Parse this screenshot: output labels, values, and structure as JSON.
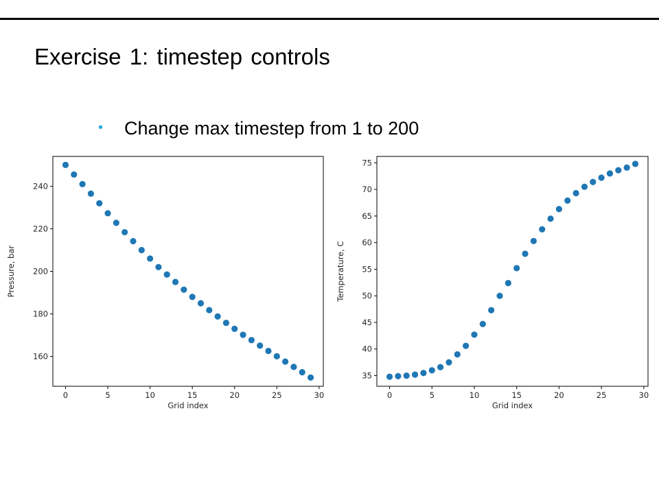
{
  "slide": {
    "title": "Exercise  1: timestep  controls",
    "bullet": "Change max timestep from 1 to 200"
  },
  "colors": {
    "marker": "#1f77b4",
    "bullet": "#2aa8d8"
  },
  "chart_data": [
    {
      "type": "scatter",
      "title": "",
      "xlabel": "Grid index",
      "ylabel": "Pressure, bar",
      "xlim": [
        -1.5,
        30.5
      ],
      "ylim": [
        146,
        254
      ],
      "xticks": [
        0,
        5,
        10,
        15,
        20,
        25,
        30
      ],
      "yticks": [
        160,
        180,
        200,
        220,
        240
      ],
      "series": [
        {
          "x": [
            0,
            1,
            2,
            3,
            4,
            5,
            6,
            7,
            8,
            9,
            10,
            11,
            12,
            13,
            14,
            15,
            16,
            17,
            18,
            19,
            20,
            21,
            22,
            23,
            24,
            25,
            26,
            27,
            28,
            29
          ],
          "y": [
            250,
            245.5,
            241,
            236.5,
            232,
            227.3,
            222.8,
            218.4,
            214.2,
            210,
            206,
            202,
            198.5,
            195,
            191.4,
            188,
            185,
            181.8,
            178.8,
            175.8,
            173,
            170.2,
            167.7,
            165.1,
            162.6,
            160.1,
            157.6,
            155.1,
            152.6,
            150.1
          ]
        }
      ]
    },
    {
      "type": "scatter",
      "title": "",
      "xlabel": "Grid index",
      "ylabel": "Temperature, C",
      "xlim": [
        -1.5,
        30.5
      ],
      "ylim": [
        33,
        76.2
      ],
      "xticks": [
        0,
        5,
        10,
        15,
        20,
        25,
        30
      ],
      "yticks": [
        35,
        40,
        45,
        50,
        55,
        60,
        65,
        70,
        75
      ],
      "series": [
        {
          "x": [
            0,
            1,
            2,
            3,
            4,
            5,
            6,
            7,
            8,
            9,
            10,
            11,
            12,
            13,
            14,
            15,
            16,
            17,
            18,
            19,
            20,
            21,
            22,
            23,
            24,
            25,
            26,
            27,
            28,
            29
          ],
          "y": [
            34.8,
            34.9,
            35,
            35.2,
            35.5,
            36,
            36.6,
            37.5,
            39,
            40.6,
            42.7,
            44.7,
            47.3,
            50,
            52.4,
            55.2,
            57.9,
            60.3,
            62.5,
            64.5,
            66.3,
            67.9,
            69.3,
            70.5,
            71.4,
            72.2,
            73,
            73.6,
            74.1,
            74.8
          ]
        }
      ]
    }
  ]
}
